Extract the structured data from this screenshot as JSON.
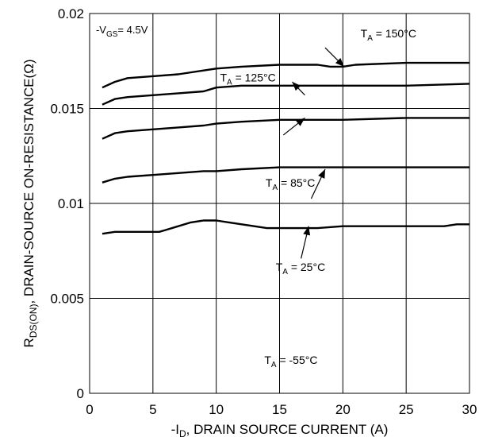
{
  "chart_data": {
    "type": "line",
    "xlabel_prefix": "-I",
    "xlabel_sub": "D",
    "xlabel_rest": ", DRAIN SOURCE CURRENT (A)",
    "ylabel_main": "R",
    "ylabel_sub": "DS(ON)",
    "ylabel_rest": ", DRAIN-SOURCE ON-RESISTANCE(Ω)",
    "xlim": [
      0,
      30
    ],
    "ylim": [
      0,
      0.02
    ],
    "x_ticks": [
      "0",
      "5",
      "10",
      "15",
      "20",
      "25",
      "30"
    ],
    "y_ticks": [
      "0",
      "0.005",
      "0.01",
      "0.015",
      "0.02"
    ],
    "grid": true,
    "annotation": {
      "pre": "-V",
      "sub": "GS",
      "post": "= 4.5V"
    },
    "series": [
      {
        "name": "T_A = 150°C",
        "label_main": "T",
        "label_sub": "A",
        "label_rest": " = 150°C",
        "x": [
          1,
          2,
          3,
          5,
          7,
          9,
          10,
          12,
          15,
          18,
          19,
          20,
          21,
          25,
          30
        ],
        "values": [
          0.0161,
          0.0164,
          0.0166,
          0.0167,
          0.0168,
          0.017,
          0.0171,
          0.0172,
          0.0173,
          0.0173,
          0.0172,
          0.0172,
          0.0173,
          0.0174,
          0.0174
        ]
      },
      {
        "name": "T_A = 125°C",
        "label_main": "T",
        "label_sub": "A",
        "label_rest": " = 125°C",
        "x": [
          1,
          2,
          3,
          5,
          7,
          9,
          10,
          12,
          15,
          20,
          25,
          30
        ],
        "values": [
          0.0152,
          0.0155,
          0.0156,
          0.0157,
          0.0158,
          0.0159,
          0.0161,
          0.0162,
          0.0162,
          0.0162,
          0.0162,
          0.0163
        ]
      },
      {
        "name": "T_A = 85°C",
        "label_main": "T",
        "label_sub": "A",
        "label_rest": " = 85°C",
        "x": [
          1,
          2,
          3,
          5,
          7,
          9,
          10,
          12,
          15,
          20,
          25,
          30
        ],
        "values": [
          0.0134,
          0.0137,
          0.0138,
          0.0139,
          0.014,
          0.0141,
          0.0142,
          0.0143,
          0.0144,
          0.0144,
          0.0145,
          0.0145
        ]
      },
      {
        "name": "T_A = 25°C",
        "label_main": "T",
        "label_sub": "A",
        "label_rest": " = 25°C",
        "x": [
          1,
          2,
          3,
          5,
          7,
          9,
          10,
          12,
          15,
          16,
          20,
          25,
          30
        ],
        "values": [
          0.0111,
          0.0113,
          0.0114,
          0.0115,
          0.0116,
          0.0117,
          0.0117,
          0.0118,
          0.0119,
          0.0119,
          0.0119,
          0.0119,
          0.0119
        ]
      },
      {
        "name": "T_A = -55°C",
        "label_main": "T",
        "label_sub": "A",
        "label_rest": " = -55°C",
        "x": [
          1,
          2,
          3,
          4,
          5.5,
          6,
          7,
          8,
          9,
          10,
          11,
          12,
          14,
          16,
          18,
          20,
          25,
          28,
          29,
          30
        ],
        "values": [
          0.0084,
          0.0085,
          0.0085,
          0.0085,
          0.0085,
          0.0086,
          0.0088,
          0.009,
          0.0091,
          0.0091,
          0.009,
          0.0089,
          0.0087,
          0.0087,
          0.0087,
          0.0088,
          0.0088,
          0.0088,
          0.0089,
          0.0089
        ]
      }
    ]
  }
}
